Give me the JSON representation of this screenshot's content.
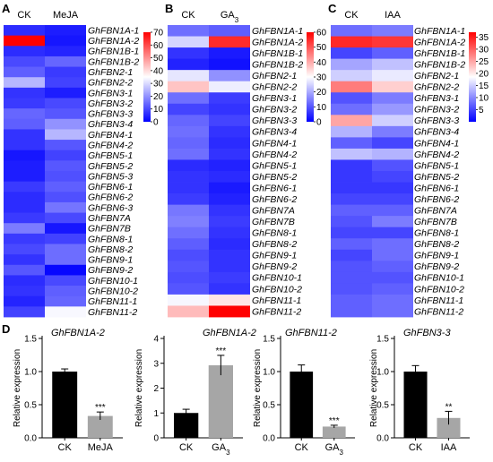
{
  "panel_labels": [
    "A",
    "B",
    "C",
    "D"
  ],
  "colors": {
    "heat_low": "#0000ff",
    "heat_mid": "#ffffff",
    "heat_high": "#ff0000",
    "bar_ck": "#000000",
    "bar_treat": "#a6a6a6"
  },
  "chart_data": [
    {
      "type": "heatmap",
      "panel": "A",
      "columns": [
        "CK",
        "MeJA"
      ],
      "rows": [
        "GhFBN1A-1",
        "GhFBN1A-2",
        "GhFBN1B-1",
        "GhFBN1B-2",
        "GhFBN2-1",
        "GhFBN2-2",
        "GhFBN3-1",
        "GhFBN3-2",
        "GhFBN3-3",
        "GhFBN3-4",
        "GhFBN4-1",
        "GhFBN4-2",
        "GhFBN5-1",
        "GhFBN5-2",
        "GhFBN5-3",
        "GhFBN6-1",
        "GhFBN6-2",
        "GhFBN6-3",
        "GhFBN7A",
        "GhFBN7B",
        "GhFBN8-1",
        "GhFBN8-2",
        "GhFBN9-1",
        "GhFBN9-2",
        "GhFBN10-1",
        "GhFBN10-2",
        "GhFBN11-1",
        "GhFBN11-2"
      ],
      "values": [
        [
          6,
          4
        ],
        [
          72,
          3
        ],
        [
          6,
          5
        ],
        [
          10,
          14
        ],
        [
          13,
          8
        ],
        [
          25,
          9
        ],
        [
          7,
          4
        ],
        [
          8,
          10
        ],
        [
          14,
          12
        ],
        [
          13,
          20
        ],
        [
          7,
          25
        ],
        [
          7,
          12
        ],
        [
          3,
          9
        ],
        [
          4,
          12
        ],
        [
          4,
          11
        ],
        [
          8,
          13
        ],
        [
          6,
          11
        ],
        [
          6,
          16
        ],
        [
          8,
          10
        ],
        [
          17,
          3
        ],
        [
          8,
          9
        ],
        [
          10,
          15
        ],
        [
          7,
          15
        ],
        [
          12,
          1
        ],
        [
          6,
          10
        ],
        [
          7,
          13
        ],
        [
          5,
          14
        ],
        [
          9,
          34
        ]
      ],
      "colorbar": {
        "min": 0,
        "max": 70,
        "ticks": [
          0,
          10,
          20,
          30,
          40,
          50,
          60,
          70
        ]
      }
    },
    {
      "type": "heatmap",
      "panel": "B",
      "columns": [
        "CK",
        "GA3"
      ],
      "rows": [
        "GhFBN1A-1",
        "GhFBN1A-2",
        "GhFBN1B-1",
        "GhFBN1B-2",
        "GhFBN2-1",
        "GhFBN2-2",
        "GhFBN3-1",
        "GhFBN3-2",
        "GhFBN3-3",
        "GhFBN3-4",
        "GhFBN4-1",
        "GhFBN4-2",
        "GhFBN5-1",
        "GhFBN5-2",
        "GhFBN6-1",
        "GhFBN6-2",
        "GhFBN7A",
        "GhFBN7B",
        "GhFBN8-1",
        "GhFBN8-2",
        "GhFBN9-1",
        "GhFBN9-2",
        "GhFBN10-1",
        "GhFBN10-2",
        "GhFBN11-1",
        "GhFBN11-2"
      ],
      "values": [
        [
          13,
          11
        ],
        [
          25,
          55
        ],
        [
          6,
          3
        ],
        [
          4,
          2
        ],
        [
          27,
          17
        ],
        [
          37,
          28
        ],
        [
          13,
          7
        ],
        [
          8,
          6
        ],
        [
          12,
          8
        ],
        [
          13,
          6
        ],
        [
          12,
          5
        ],
        [
          13,
          6
        ],
        [
          5,
          4
        ],
        [
          6,
          5
        ],
        [
          6,
          3
        ],
        [
          7,
          4
        ],
        [
          14,
          6
        ],
        [
          15,
          7
        ],
        [
          13,
          6
        ],
        [
          11,
          5
        ],
        [
          9,
          6
        ],
        [
          10,
          6
        ],
        [
          9,
          7
        ],
        [
          10,
          6
        ],
        [
          29,
          33
        ],
        [
          38,
          65
        ]
      ],
      "colorbar": {
        "min": 0,
        "max": 60,
        "ticks": [
          0,
          10,
          20,
          30,
          40,
          50,
          60
        ]
      }
    },
    {
      "type": "heatmap",
      "panel": "C",
      "columns": [
        "CK",
        "IAA"
      ],
      "rows": [
        "GhFBN1A-1",
        "GhFBN1A-2",
        "GhFBN1B-1",
        "GhFBN1B-2",
        "GhFBN2-1",
        "GhFBN2-2",
        "GhFBN3-1",
        "GhFBN3-2",
        "GhFBN3-3",
        "GhFBN3-4",
        "GhFBN4-1",
        "GhFBN4-2",
        "GhFBN5-1",
        "GhFBN5-2",
        "GhFBN6-1",
        "GhFBN6-2",
        "GhFBN7A",
        "GhFBN7B",
        "GhFBN8-1",
        "GhFBN8-2",
        "GhFBN9-1",
        "GhFBN9-2",
        "GhFBN10-1",
        "GhFBN10-2",
        "GhFBN11-1",
        "GhFBN11-2"
      ],
      "values": [
        [
          8,
          9
        ],
        [
          34,
          33
        ],
        [
          5,
          7
        ],
        [
          12,
          14
        ],
        [
          15,
          17
        ],
        [
          28,
          22
        ],
        [
          6,
          9
        ],
        [
          8,
          11
        ],
        [
          25,
          15
        ],
        [
          13,
          9
        ],
        [
          7,
          5
        ],
        [
          14,
          13
        ],
        [
          4,
          6
        ],
        [
          4,
          5
        ],
        [
          4,
          4
        ],
        [
          5,
          5
        ],
        [
          7,
          7
        ],
        [
          6,
          9
        ],
        [
          5,
          5
        ],
        [
          7,
          8
        ],
        [
          5,
          8
        ],
        [
          6,
          7
        ],
        [
          6,
          6
        ],
        [
          6,
          7
        ],
        [
          7,
          8
        ],
        [
          7,
          8
        ]
      ],
      "colorbar": {
        "min": 0,
        "max": 37,
        "ticks": [
          5,
          10,
          15,
          20,
          25,
          30,
          35
        ]
      }
    },
    {
      "type": "bar",
      "panel": "D",
      "title": "GhFBN1A-2",
      "categories": [
        "CK",
        "MeJA"
      ],
      "values": [
        1.0,
        0.33
      ],
      "errors": [
        0.04,
        0.06
      ],
      "significance": [
        "",
        "***"
      ],
      "ylabel": "Relative expression",
      "ylim": [
        0,
        1.5
      ],
      "yticks": [
        "0.0",
        "0.5",
        "1.0",
        "1.5"
      ]
    },
    {
      "type": "bar",
      "panel": "D",
      "title": "GhFBN1A-2",
      "categories": [
        "CK",
        "GA3"
      ],
      "values": [
        1.0,
        2.92
      ],
      "errors": [
        0.15,
        0.4
      ],
      "significance": [
        "",
        "***"
      ],
      "ylabel": "Relative expression",
      "ylim": [
        0,
        4
      ],
      "yticks": [
        "0",
        "1",
        "2",
        "3",
        "4"
      ]
    },
    {
      "type": "bar",
      "panel": "D",
      "title": "GhFBN11-2",
      "categories": [
        "CK",
        "GA3"
      ],
      "values": [
        1.0,
        0.17
      ],
      "errors": [
        0.1,
        0.02
      ],
      "significance": [
        "",
        "***"
      ],
      "ylabel": "Relative expression",
      "ylim": [
        0,
        1.5
      ],
      "yticks": [
        "0.0",
        "0.5",
        "1.0",
        "1.5"
      ]
    },
    {
      "type": "bar",
      "panel": "D",
      "title": "GhFBN3-3",
      "categories": [
        "CK",
        "IAA"
      ],
      "values": [
        1.0,
        0.3
      ],
      "errors": [
        0.09,
        0.1
      ],
      "significance": [
        "",
        "**"
      ],
      "ylabel": "Relative expression",
      "ylim": [
        0,
        1.5
      ],
      "yticks": [
        "0.0",
        "0.5",
        "1.0",
        "1.5"
      ]
    }
  ]
}
